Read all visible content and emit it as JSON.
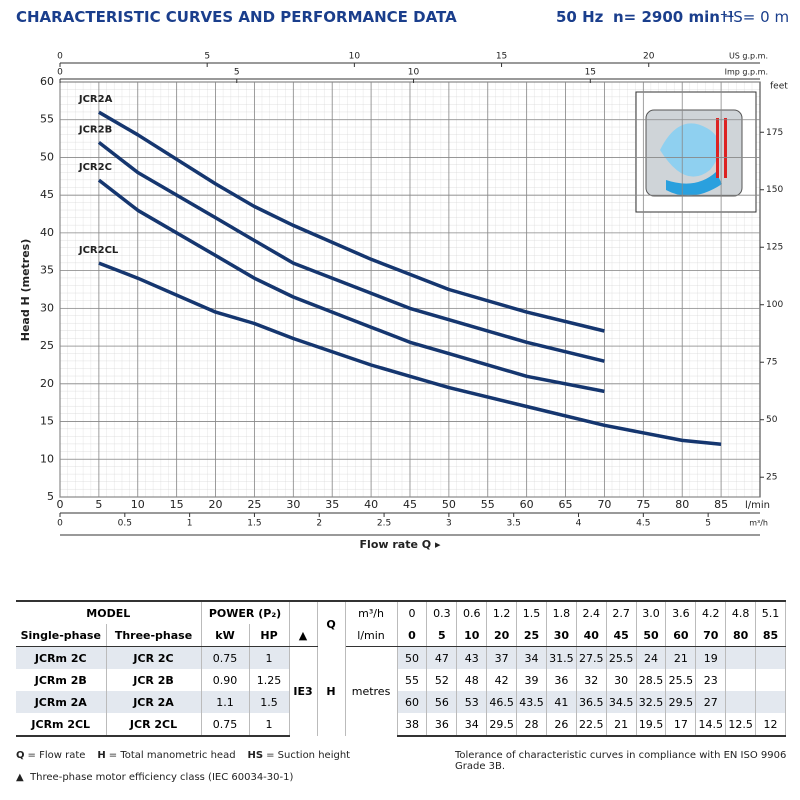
{
  "header": {
    "title": "CHARACTERISTIC CURVES AND PERFORMANCE DATA",
    "freq": "50 Hz",
    "speed": "n= 2900 min⁻¹",
    "suction": "HS= 0 m"
  },
  "chart_data": {
    "type": "line",
    "x_label": "Flow rate Q ▸",
    "x_unit": "l/min",
    "y_label": "Head H (metres)",
    "y2_label": "feet",
    "x": [
      5,
      10,
      20,
      25,
      30,
      40,
      45,
      50,
      60,
      70,
      80,
      85
    ],
    "xlim": [
      0,
      90
    ],
    "xticks": [
      0,
      5,
      10,
      15,
      20,
      25,
      30,
      35,
      40,
      45,
      50,
      55,
      60,
      65,
      70,
      75,
      80,
      85
    ],
    "ylim": [
      5,
      60
    ],
    "yticks": [
      5,
      10,
      15,
      20,
      25,
      30,
      35,
      40,
      45,
      50,
      55,
      60
    ],
    "y2lim": [
      16.4,
      196.85
    ],
    "y2ticks": [
      25,
      50,
      75,
      100,
      125,
      150,
      175
    ],
    "grid": true,
    "secondary_x_axes": [
      {
        "label": "m³/h",
        "position": "bottom",
        "xlim": [
          0,
          5.4
        ],
        "xticks": [
          0,
          0.5,
          1,
          1.5,
          2,
          2.5,
          3,
          3.5,
          4,
          4.5,
          5
        ]
      },
      {
        "label": "US g.p.m.",
        "position": "top",
        "xlim": [
          0,
          23.78
        ],
        "xticks": [
          0,
          5,
          10,
          15,
          20
        ]
      },
      {
        "label": "Imp g.p.m.",
        "position": "top",
        "xlim": [
          0,
          19.8
        ],
        "xticks": [
          0,
          5,
          10,
          15
        ]
      }
    ],
    "series": [
      {
        "name": "JCR2A",
        "color": "#15366f",
        "values": [
          56,
          53,
          46.5,
          43.5,
          41,
          36.5,
          34.5,
          32.5,
          29.5,
          27,
          null,
          null
        ]
      },
      {
        "name": "JCR2B",
        "color": "#15366f",
        "values": [
          52,
          48,
          42,
          39,
          36,
          32,
          30,
          28.5,
          25.5,
          23,
          null,
          null
        ]
      },
      {
        "name": "JCR2C",
        "color": "#15366f",
        "values": [
          47,
          43,
          37,
          34,
          31.5,
          27.5,
          25.5,
          24,
          21,
          19,
          null,
          null
        ]
      },
      {
        "name": "JCR2CL",
        "color": "#15366f",
        "values": [
          36,
          34,
          29.5,
          28,
          26,
          22.5,
          21,
          19.5,
          17,
          14.5,
          12.5,
          12
        ]
      }
    ]
  },
  "table": {
    "model": "MODEL",
    "power": "POWER (P₂)",
    "q": "Q",
    "q_unit_m3h": "m³/h",
    "q_unit_lmin": "l/min",
    "single_phase": "Single-phase",
    "three_phase": "Three-phase",
    "kw": "kW",
    "hp": "HP",
    "efficiency_symbol": "▲",
    "efficiency_class": "IE3",
    "h": "H",
    "h_unit": "metres",
    "q_m3h": [
      "0",
      "0.3",
      "0.6",
      "1.2",
      "1.5",
      "1.8",
      "2.4",
      "2.7",
      "3.0",
      "3.6",
      "4.2",
      "4.8",
      "5.1"
    ],
    "q_lmin": [
      "0",
      "5",
      "10",
      "20",
      "25",
      "30",
      "40",
      "45",
      "50",
      "60",
      "70",
      "80",
      "85"
    ],
    "rows": [
      {
        "single": "JCRm 2C",
        "three": "JCR 2C",
        "kw": "0.75",
        "hp": "1",
        "heads": [
          "50",
          "47",
          "43",
          "37",
          "34",
          "31.5",
          "27.5",
          "25.5",
          "24",
          "21",
          "19",
          null,
          null
        ]
      },
      {
        "single": "JCRm 2B",
        "three": "JCR 2B",
        "kw": "0.90",
        "hp": "1.25",
        "heads": [
          "55",
          "52",
          "48",
          "42",
          "39",
          "36",
          "32",
          "30",
          "28.5",
          "25.5",
          "23",
          null,
          null
        ]
      },
      {
        "single": "JCRm 2A",
        "three": "JCR 2A",
        "kw": "1.1",
        "hp": "1.5",
        "heads": [
          "60",
          "56",
          "53",
          "46.5",
          "43.5",
          "41",
          "36.5",
          "34.5",
          "32.5",
          "29.5",
          "27",
          null,
          null
        ]
      },
      {
        "single": "JCRm 2CL",
        "three": "JCR 2CL",
        "kw": "0.75",
        "hp": "1",
        "heads": [
          "38",
          "36",
          "34",
          "29.5",
          "28",
          "26",
          "22.5",
          "21",
          "19.5",
          "17",
          "14.5",
          "12.5",
          "12"
        ]
      }
    ]
  },
  "footer": {
    "notes": [
      {
        "key": "Q",
        "text": "= Flow rate"
      },
      {
        "key": "H",
        "text": "= Total manometric head"
      },
      {
        "key": "HS",
        "text": "= Suction height"
      }
    ],
    "tolerance": "Tolerance of characteristic curves in compliance with EN ISO 9906 Grade 3B.",
    "symbol": "▲",
    "efficiency_note": "Three-phase motor efficiency class (IEC 60034-30-1)"
  }
}
